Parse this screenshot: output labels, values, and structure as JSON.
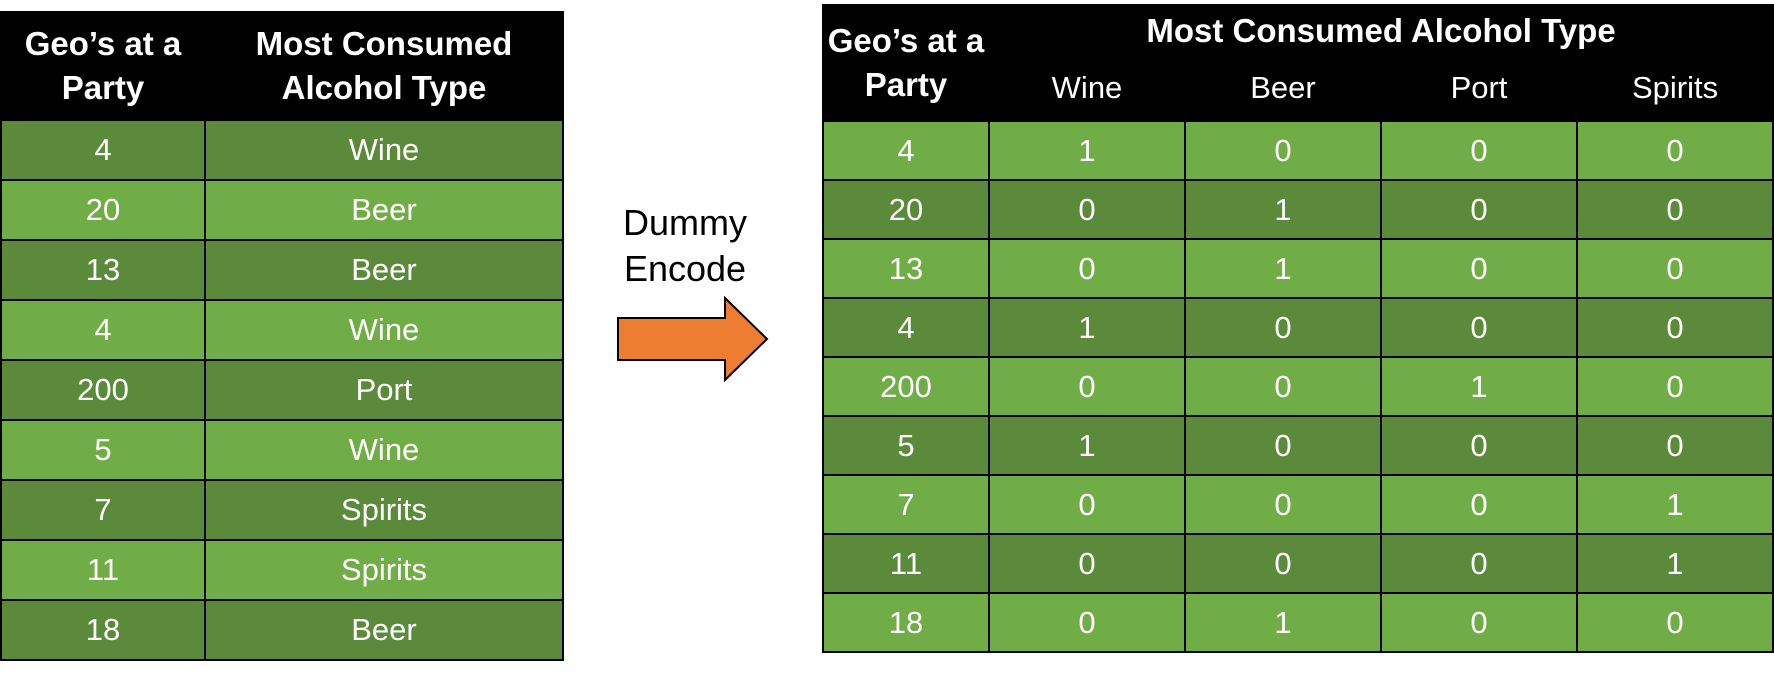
{
  "colors": {
    "header": "#000000",
    "row_dark": "#5a8a3a",
    "row_light": "#70ad47",
    "arrow": "#ed7d31"
  },
  "left_table": {
    "headers": [
      "Geo’s at a Party",
      "Most Consumed Alcohol Type"
    ],
    "rows": [
      [
        "4",
        "Wine"
      ],
      [
        "20",
        "Beer"
      ],
      [
        "13",
        "Beer"
      ],
      [
        "4",
        "Wine"
      ],
      [
        "200",
        "Port"
      ],
      [
        "5",
        "Wine"
      ],
      [
        "7",
        "Spirits"
      ],
      [
        "11",
        "Spirits"
      ],
      [
        "18",
        "Beer"
      ]
    ]
  },
  "annotation": {
    "line1": "Dummy",
    "line2": "Encode",
    "icon": "arrow-right-icon"
  },
  "right_table": {
    "geo_header": "Geo’s at a Party",
    "group_header": "Most Consumed Alcohol Type",
    "sub_headers": [
      "Wine",
      "Beer",
      "Port",
      "Spirits"
    ],
    "rows": [
      [
        "4",
        "1",
        "0",
        "0",
        "0"
      ],
      [
        "20",
        "0",
        "1",
        "0",
        "0"
      ],
      [
        "13",
        "0",
        "1",
        "0",
        "0"
      ],
      [
        "4",
        "1",
        "0",
        "0",
        "0"
      ],
      [
        "200",
        "0",
        "0",
        "1",
        "0"
      ],
      [
        "5",
        "1",
        "0",
        "0",
        "0"
      ],
      [
        "7",
        "0",
        "0",
        "0",
        "1"
      ],
      [
        "11",
        "0",
        "0",
        "0",
        "1"
      ],
      [
        "18",
        "0",
        "1",
        "0",
        "0"
      ]
    ]
  }
}
